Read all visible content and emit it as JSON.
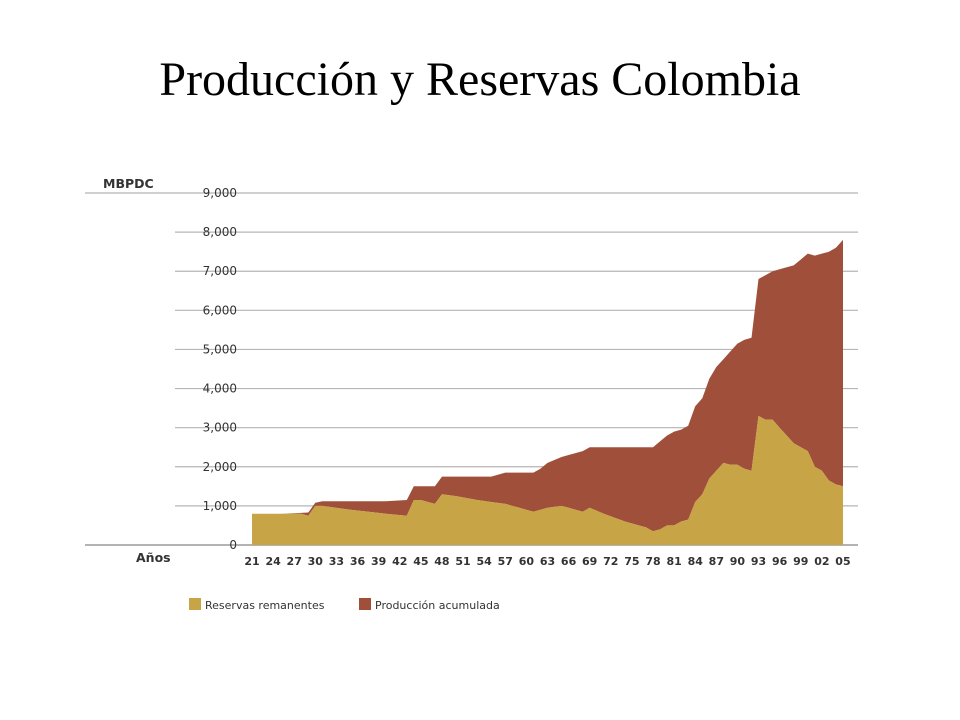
{
  "slide": {
    "title": "Producción y Reservas Colombia"
  },
  "chart_data": {
    "type": "area",
    "stacked": true,
    "ylabel": "MBPDC",
    "xlabel": "Años",
    "ylim": [
      0,
      9000
    ],
    "yticks": [
      0,
      1000,
      2000,
      3000,
      4000,
      5000,
      6000,
      7000,
      8000,
      9000
    ],
    "ytick_labels": [
      "0",
      "1,000",
      "2,000",
      "3,000",
      "4,000",
      "5,000",
      "6,000",
      "7,000",
      "8,000",
      "9,000"
    ],
    "xlim": [
      1921,
      2006
    ],
    "xticks": [
      1921,
      1924,
      1927,
      1930,
      1933,
      1936,
      1939,
      1942,
      1945,
      1948,
      1951,
      1954,
      1957,
      1960,
      1963,
      1966,
      1969,
      1972,
      1975,
      1978,
      1981,
      1984,
      1987,
      1990,
      1993,
      1996,
      1999,
      2002,
      2005
    ],
    "xtick_labels": [
      "21",
      "24",
      "27",
      "30",
      "33",
      "36",
      "39",
      "42",
      "45",
      "48",
      "51",
      "54",
      "57",
      "60",
      "63",
      "66",
      "69",
      "72",
      "75",
      "78",
      "81",
      "84",
      "87",
      "90",
      "93",
      "96",
      "99",
      "02",
      "05"
    ],
    "grid": "horizontal",
    "legend_position": "bottom-left",
    "x": [
      1921,
      1925,
      1928,
      1929,
      1930,
      1931,
      1935,
      1940,
      1943,
      1944,
      1945,
      1946,
      1947,
      1948,
      1950,
      1953,
      1955,
      1957,
      1959,
      1961,
      1962,
      1963,
      1965,
      1966,
      1968,
      1969,
      1971,
      1974,
      1977,
      1978,
      1979,
      1980,
      1981,
      1982,
      1983,
      1984,
      1985,
      1986,
      1987,
      1988,
      1989,
      1990,
      1991,
      1992,
      1993,
      1994,
      1995,
      1996,
      1997,
      1998,
      1999,
      2000,
      2001,
      2002,
      2003,
      2004,
      2005
    ],
    "series": [
      {
        "name": "Reservas remanentes",
        "color": "#c7a445",
        "values": [
          800,
          800,
          800,
          750,
          1000,
          1000,
          900,
          800,
          750,
          1150,
          1150,
          1100,
          1050,
          1300,
          1250,
          1150,
          1100,
          1050,
          950,
          850,
          900,
          950,
          1000,
          950,
          850,
          950,
          800,
          600,
          450,
          350,
          400,
          500,
          500,
          600,
          650,
          1100,
          1300,
          1700,
          1900,
          2100,
          2050,
          2050,
          1950,
          1900,
          3300,
          3200,
          3200,
          3000,
          2800,
          2600,
          2500,
          2400,
          2000,
          1900,
          1650,
          1550,
          1500
        ]
      },
      {
        "name": "Producción acumulada",
        "color": "#a0503a",
        "values": [
          0,
          0,
          20,
          80,
          80,
          120,
          220,
          320,
          400,
          350,
          350,
          400,
          450,
          450,
          500,
          600,
          650,
          800,
          900,
          1000,
          1050,
          1150,
          1250,
          1350,
          1550,
          1550,
          1700,
          1900,
          2050,
          2150,
          2250,
          2300,
          2400,
          2350,
          2400,
          2450,
          2450,
          2550,
          2650,
          2650,
          2900,
          3100,
          3300,
          3400,
          3500,
          3700,
          3800,
          4050,
          4300,
          4550,
          4800,
          5050,
          5400,
          5550,
          5850,
          6050,
          6300
        ]
      }
    ]
  }
}
